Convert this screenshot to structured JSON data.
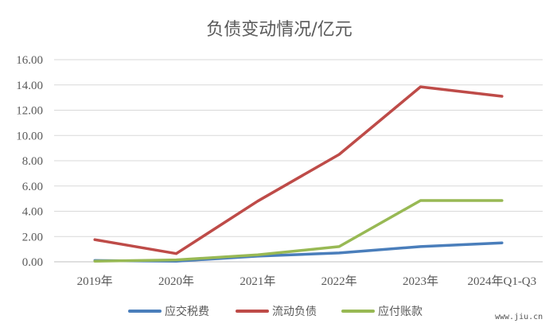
{
  "chart_data": {
    "type": "line",
    "title": "负债变动情况/亿元",
    "xlabel": "",
    "ylabel": "",
    "categories": [
      "2019年",
      "2020年",
      "2021年",
      "2022年",
      "2023年",
      "2024年Q1-Q3"
    ],
    "ylim": [
      0,
      16
    ],
    "yticks": [
      "0.00",
      "2.00",
      "4.00",
      "6.00",
      "8.00",
      "10.00",
      "12.00",
      "14.00",
      "16.00"
    ],
    "grid": true,
    "legend": "bottom",
    "series": [
      {
        "name": "应交税费",
        "color": "#4a7ebb",
        "values": [
          0.1,
          0.05,
          0.45,
          0.7,
          1.2,
          1.5
        ]
      },
      {
        "name": "流动负债",
        "color": "#be4b48",
        "values": [
          1.75,
          0.65,
          4.8,
          8.5,
          13.85,
          13.1
        ]
      },
      {
        "name": "应付账款",
        "color": "#98b954",
        "values": [
          0.05,
          0.15,
          0.55,
          1.2,
          4.85,
          4.85
        ]
      }
    ]
  },
  "watermark": "www.jiu.cn"
}
